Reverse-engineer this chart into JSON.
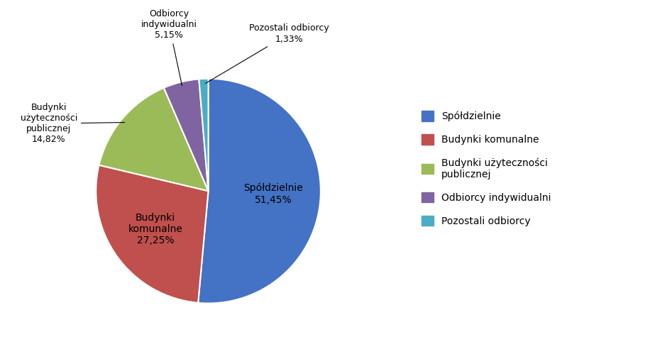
{
  "labels": [
    "Spółdzielnie",
    "Budynki komunalne",
    "Budynki użyteczności publicznej",
    "Odbiorcy indywidualni",
    "Pozostali odbiorcy"
  ],
  "values": [
    51.45,
    27.25,
    14.82,
    5.15,
    1.33
  ],
  "colors": [
    "#4472C4",
    "#C0504D",
    "#9BBB59",
    "#8064A2",
    "#4BACC6"
  ],
  "legend_labels": [
    "Spółdzielnie",
    "Budynki komunalne",
    "Budynki użyteczności\npublicznej",
    "Odbiorcy indywidualni",
    "Pozostali odbiorcy"
  ],
  "startangle": 90,
  "background_color": "#ffffff",
  "figure_background": "#ffffff"
}
